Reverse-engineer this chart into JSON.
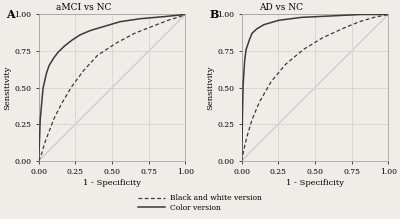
{
  "panel_A_title": "aMCI vs NC",
  "panel_B_title": "AD vs NC",
  "panel_A_label": "A",
  "panel_B_label": "B",
  "xlabel": "1 - Specificity",
  "ylabel": "Sensitivity",
  "legend_bw": "Black and white version",
  "legend_color": "Color version",
  "xlim": [
    0.0,
    1.0
  ],
  "ylim": [
    0.0,
    1.0
  ],
  "xticks": [
    0.0,
    0.25,
    0.5,
    0.75,
    1.0
  ],
  "yticks": [
    0.0,
    0.25,
    0.5,
    0.75,
    1.0
  ],
  "xtick_labels": [
    "0.00",
    "0.25",
    "0.50",
    "0.75",
    "1.00"
  ],
  "ytick_labels": [
    "0.00",
    "0.25",
    "0.50",
    "0.75",
    "1.00"
  ],
  "diagonal_color": "#c8c8c8",
  "curve_color": "#3a3a3a",
  "background_color": "#f0ece8",
  "plot_bg_color": "#f0ece8",
  "grid_color": "#d8d4d0",
  "figsize": [
    4.0,
    2.19
  ],
  "dpi": 100,
  "fpr_A_color": [
    0,
    0.01,
    0.02,
    0.03,
    0.05,
    0.07,
    0.1,
    0.13,
    0.17,
    0.22,
    0.28,
    0.35,
    0.45,
    0.55,
    0.68,
    0.8,
    0.9,
    1.0
  ],
  "tpr_A_color": [
    0,
    0.28,
    0.4,
    0.5,
    0.59,
    0.65,
    0.7,
    0.74,
    0.78,
    0.82,
    0.86,
    0.89,
    0.92,
    0.95,
    0.97,
    0.98,
    0.99,
    1.0
  ],
  "fpr_A_bw": [
    0,
    0.02,
    0.04,
    0.07,
    0.1,
    0.15,
    0.22,
    0.3,
    0.4,
    0.52,
    0.65,
    0.78,
    0.88,
    0.95,
    1.0
  ],
  "tpr_A_bw": [
    0,
    0.05,
    0.12,
    0.2,
    0.28,
    0.38,
    0.5,
    0.61,
    0.72,
    0.8,
    0.87,
    0.92,
    0.96,
    0.98,
    1.0
  ],
  "fpr_B_color": [
    0,
    0.005,
    0.01,
    0.02,
    0.03,
    0.05,
    0.07,
    0.1,
    0.15,
    0.25,
    0.4,
    0.6,
    0.8,
    1.0
  ],
  "tpr_B_color": [
    0,
    0.3,
    0.52,
    0.68,
    0.76,
    0.82,
    0.87,
    0.9,
    0.93,
    0.96,
    0.98,
    0.99,
    1.0,
    1.0
  ],
  "fpr_B_bw": [
    0,
    0.02,
    0.04,
    0.07,
    0.12,
    0.2,
    0.3,
    0.42,
    0.55,
    0.68,
    0.8,
    0.9,
    1.0
  ],
  "tpr_B_bw": [
    0,
    0.1,
    0.18,
    0.28,
    0.4,
    0.54,
    0.66,
    0.76,
    0.84,
    0.9,
    0.95,
    0.98,
    1.0
  ]
}
